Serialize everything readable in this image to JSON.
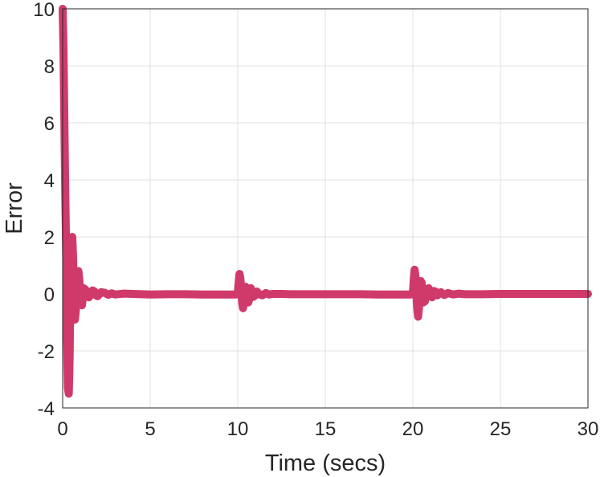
{
  "chart_data": {
    "type": "line",
    "title": "",
    "xlabel": "Time (secs)",
    "ylabel": "Error",
    "xlim": [
      0,
      30
    ],
    "ylim": [
      -4,
      10
    ],
    "xticks": [
      0,
      5,
      10,
      15,
      20,
      25,
      30
    ],
    "yticks": [
      -4,
      -2,
      0,
      2,
      4,
      6,
      8,
      10
    ],
    "xtick_labels": [
      "0",
      "5",
      "10",
      "15",
      "20",
      "25",
      "30"
    ],
    "ytick_labels": [
      "-4",
      "-2",
      "0",
      "2",
      "4",
      "6",
      "8",
      "10"
    ],
    "grid": true,
    "series": [
      {
        "color": "#d03a6b",
        "x": [
          0,
          0.05,
          0.1,
          0.15,
          0.2,
          0.25,
          0.3,
          0.35,
          0.4,
          0.45,
          0.5,
          0.55,
          0.6,
          0.65,
          0.7,
          0.75,
          0.8,
          0.85,
          0.9,
          0.95,
          1.0,
          1.05,
          1.1,
          1.15,
          1.2,
          1.3,
          1.4,
          1.5,
          1.6,
          1.7,
          1.8,
          1.9,
          2.0,
          2.2,
          2.4,
          2.6,
          2.8,
          3.0,
          3.5,
          4.0,
          5.0,
          6.0,
          7.0,
          8.0,
          9.0,
          9.9,
          10.0,
          10.05,
          10.1,
          10.15,
          10.2,
          10.25,
          10.3,
          10.35,
          10.4,
          10.45,
          10.5,
          10.55,
          10.6,
          10.65,
          10.7,
          10.75,
          10.8,
          10.9,
          11.0,
          11.1,
          11.2,
          11.4,
          11.6,
          11.8,
          12.0,
          12.5,
          13.0,
          14.0,
          15.0,
          16.0,
          17.0,
          18.0,
          19.0,
          19.9,
          20.0,
          20.05,
          20.1,
          20.15,
          20.2,
          20.25,
          20.3,
          20.35,
          20.4,
          20.45,
          20.5,
          20.55,
          20.6,
          20.7,
          20.8,
          20.9,
          21.0,
          21.1,
          21.2,
          21.3,
          21.4,
          21.6,
          21.8,
          22.0,
          22.3,
          22.6,
          23.0,
          23.5,
          24.0,
          25.0,
          26.0,
          27.0,
          28.0,
          29.0,
          30.0
        ],
        "y": [
          10,
          8.5,
          6,
          3.5,
          1.5,
          -1.5,
          -3.3,
          -3.5,
          -2.2,
          0.6,
          1.7,
          2.0,
          1.2,
          -0.3,
          -0.9,
          -0.6,
          0.1,
          0.6,
          0.8,
          0.5,
          0.0,
          -0.35,
          -0.4,
          -0.15,
          0.2,
          0.15,
          -0.1,
          -0.12,
          0.0,
          0.12,
          0.1,
          -0.05,
          -0.08,
          0.06,
          0.04,
          -0.03,
          0.02,
          -0.02,
          0.01,
          0.0,
          -0.02,
          -0.01,
          -0.01,
          -0.02,
          -0.02,
          -0.02,
          0.0,
          0.4,
          0.7,
          0.55,
          0.1,
          -0.3,
          -0.5,
          -0.3,
          0.05,
          0.25,
          0.2,
          -0.1,
          -0.3,
          -0.2,
          0.1,
          0.2,
          0.12,
          -0.1,
          -0.05,
          0.08,
          0.0,
          -0.05,
          0.03,
          -0.02,
          0.0,
          0.0,
          -0.01,
          -0.01,
          -0.01,
          -0.01,
          -0.01,
          -0.02,
          -0.02,
          -0.02,
          0.0,
          0.5,
          0.85,
          0.6,
          0.0,
          -0.5,
          -0.8,
          -0.5,
          0.1,
          0.45,
          0.4,
          0.0,
          -0.3,
          -0.25,
          0.15,
          0.2,
          -0.05,
          -0.12,
          0.1,
          0.08,
          -0.05,
          0.06,
          -0.04,
          0.03,
          -0.02,
          0.01,
          -0.01,
          -0.01,
          -0.01,
          0.0,
          0.0,
          0.0,
          0.0,
          0.0,
          0.0
        ]
      }
    ]
  }
}
